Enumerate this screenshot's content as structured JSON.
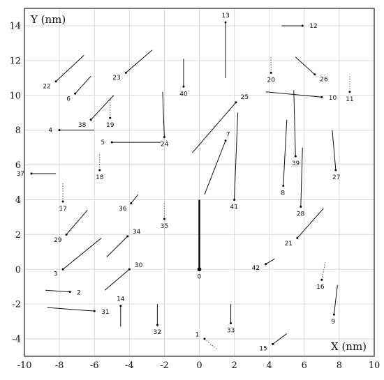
{
  "chart_data": {
    "type": "scatter",
    "xlabel": "X (nm)",
    "ylabel": "Y (nm)",
    "xlim": [
      -10,
      10
    ],
    "ylim": [
      -5,
      15
    ],
    "grid": true,
    "xticks": [
      -10,
      -8,
      -6,
      -4,
      -2,
      0,
      2,
      4,
      6,
      8,
      10
    ],
    "yticks": [
      -4,
      -2,
      0,
      2,
      4,
      6,
      8,
      10,
      12,
      14
    ],
    "points": [
      {
        "label": "0",
        "x": 0.0,
        "y": 0.0,
        "x2": 0.0,
        "y2": 4.0,
        "style": "thick"
      },
      {
        "label": "1",
        "x": 0.3,
        "y": -4.0,
        "x2": 1.0,
        "y2": -4.6,
        "style": "dotted"
      },
      {
        "label": "2",
        "x": -7.4,
        "y": -1.3,
        "x2": -8.8,
        "y2": -1.2,
        "style": "solid"
      },
      {
        "label": "3",
        "x": -7.8,
        "y": 0.0,
        "x2": -5.6,
        "y2": 1.8,
        "style": "solid"
      },
      {
        "label": "4",
        "x": -8.0,
        "y": 8.0,
        "x2": -6.0,
        "y2": 8.0,
        "style": "solid"
      },
      {
        "label": "5",
        "x": -5.0,
        "y": 7.3,
        "x2": -2.2,
        "y2": 7.3,
        "style": "solid"
      },
      {
        "label": "6",
        "x": -7.1,
        "y": 10.1,
        "x2": -6.2,
        "y2": 11.1,
        "style": "solid"
      },
      {
        "label": "7",
        "x": 1.5,
        "y": 7.4,
        "x2": 0.3,
        "y2": 4.3,
        "style": "solid"
      },
      {
        "label": "8",
        "x": 4.8,
        "y": 4.8,
        "x2": 5.0,
        "y2": 8.6,
        "style": "solid"
      },
      {
        "label": "9",
        "x": 7.7,
        "y": -2.6,
        "x2": 7.9,
        "y2": -0.9,
        "style": "solid"
      },
      {
        "label": "10",
        "x": 7.0,
        "y": 9.9,
        "x2": 3.8,
        "y2": 10.2,
        "style": "solid"
      },
      {
        "label": "11",
        "x": 8.6,
        "y": 10.2,
        "x2": 8.6,
        "y2": 11.2,
        "style": "dotted"
      },
      {
        "label": "12",
        "x": 5.9,
        "y": 14.0,
        "x2": 4.7,
        "y2": 14.0,
        "style": "solid"
      },
      {
        "label": "13",
        "x": 1.5,
        "y": 14.2,
        "x2": 1.5,
        "y2": 11.0,
        "style": "solid"
      },
      {
        "label": "14",
        "x": -4.5,
        "y": -2.1,
        "x2": -4.5,
        "y2": -3.3,
        "style": "solid"
      },
      {
        "label": "15",
        "x": 4.2,
        "y": -4.3,
        "x2": 5.0,
        "y2": -3.7,
        "style": "solid"
      },
      {
        "label": "16",
        "x": 7.0,
        "y": -0.6,
        "x2": 7.2,
        "y2": 0.4,
        "style": "dotted"
      },
      {
        "label": "17",
        "x": -7.8,
        "y": 3.9,
        "x2": -7.8,
        "y2": 5.0,
        "style": "dotted"
      },
      {
        "label": "18",
        "x": -5.7,
        "y": 5.7,
        "x2": -5.7,
        "y2": 6.7,
        "style": "dotted"
      },
      {
        "label": "19",
        "x": -5.1,
        "y": 8.7,
        "x2": -5.1,
        "y2": 9.8,
        "style": "dotted"
      },
      {
        "label": "20",
        "x": 4.1,
        "y": 11.3,
        "x2": 4.1,
        "y2": 12.2,
        "style": "dotted"
      },
      {
        "label": "21",
        "x": 5.6,
        "y": 1.8,
        "x2": 7.1,
        "y2": 3.5,
        "style": "solid"
      },
      {
        "label": "22",
        "x": -8.2,
        "y": 10.8,
        "x2": -6.6,
        "y2": 12.3,
        "style": "solid"
      },
      {
        "label": "23",
        "x": -4.2,
        "y": 11.3,
        "x2": -2.7,
        "y2": 12.6,
        "style": "solid"
      },
      {
        "label": "24",
        "x": -2.0,
        "y": 7.6,
        "x2": -2.1,
        "y2": 10.2,
        "style": "solid"
      },
      {
        "label": "25",
        "x": 2.1,
        "y": 9.6,
        "x2": -0.4,
        "y2": 6.7,
        "style": "solid"
      },
      {
        "label": "26",
        "x": 6.6,
        "y": 11.2,
        "x2": 5.5,
        "y2": 12.2,
        "style": "solid"
      },
      {
        "label": "27",
        "x": 7.8,
        "y": 5.7,
        "x2": 7.6,
        "y2": 8.0,
        "style": "solid"
      },
      {
        "label": "28",
        "x": 5.8,
        "y": 3.6,
        "x2": 5.9,
        "y2": 7.0,
        "style": "solid"
      },
      {
        "label": "29",
        "x": -7.6,
        "y": 2.0,
        "x2": -6.4,
        "y2": 3.4,
        "style": "solid"
      },
      {
        "label": "30",
        "x": -4.0,
        "y": 0.0,
        "x2": -5.4,
        "y2": -1.2,
        "style": "solid"
      },
      {
        "label": "31",
        "x": -6.0,
        "y": -2.4,
        "x2": -8.7,
        "y2": -2.2,
        "style": "solid"
      },
      {
        "label": "32",
        "x": -2.4,
        "y": -3.2,
        "x2": -2.4,
        "y2": -2.0,
        "style": "solid"
      },
      {
        "label": "33",
        "x": 1.8,
        "y": -3.1,
        "x2": 1.8,
        "y2": -2.0,
        "style": "solid"
      },
      {
        "label": "34",
        "x": -4.1,
        "y": 1.9,
        "x2": -5.3,
        "y2": 0.7,
        "style": "solid"
      },
      {
        "label": "35",
        "x": -2.0,
        "y": 2.9,
        "x2": -2.0,
        "y2": 3.9,
        "style": "dotted"
      },
      {
        "label": "36",
        "x": -3.9,
        "y": 3.8,
        "x2": -3.5,
        "y2": 4.3,
        "style": "solid"
      },
      {
        "label": "37",
        "x": -9.6,
        "y": 5.5,
        "x2": -8.2,
        "y2": 5.5,
        "style": "solid"
      },
      {
        "label": "38",
        "x": -6.2,
        "y": 8.6,
        "x2": -4.9,
        "y2": 10.0,
        "style": "solid"
      },
      {
        "label": "39",
        "x": 5.5,
        "y": 6.5,
        "x2": 5.4,
        "y2": 10.3,
        "style": "solid"
      },
      {
        "label": "40",
        "x": -0.9,
        "y": 10.5,
        "x2": -0.9,
        "y2": 12.1,
        "style": "solid"
      },
      {
        "label": "41",
        "x": 2.0,
        "y": 4.0,
        "x2": 2.2,
        "y2": 9.0,
        "style": "solid"
      },
      {
        "label": "42",
        "x": 3.8,
        "y": 0.3,
        "x2": 4.3,
        "y2": 0.6,
        "style": "solid"
      }
    ]
  }
}
